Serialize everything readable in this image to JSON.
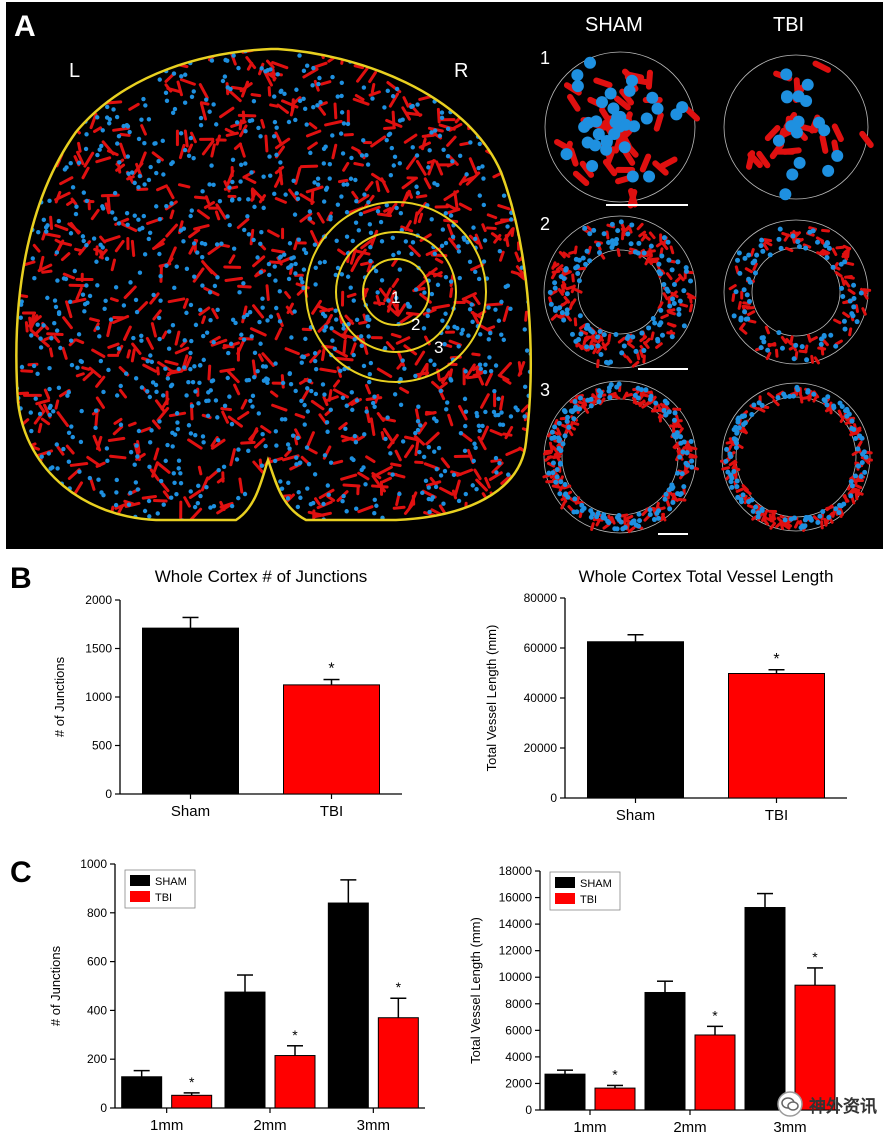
{
  "panel_a": {
    "letter": "A",
    "left_label": "L",
    "right_label": "R",
    "col_sham": "SHAM",
    "col_tbi": "TBI",
    "ring_labels": [
      "1",
      "2",
      "3"
    ],
    "row_labels": [
      "1",
      "2",
      "3"
    ],
    "colors": {
      "vessel": "#e01010",
      "junction": "#1e90e0",
      "outline": "#e8d020",
      "filopodia": "#40c030"
    }
  },
  "panel_b_letter": "B",
  "panel_c_letter": "C",
  "watermark": "神外资讯",
  "chart_data": [
    {
      "type": "bar",
      "title": "Whole Cortex # of Junctions",
      "ylabel": "# of Junctions",
      "categories": [
        "Sham",
        "TBI"
      ],
      "values": [
        1710,
        1125
      ],
      "errors": [
        110,
        55
      ],
      "significant": [
        false,
        true
      ],
      "bar_colors": [
        "#000000",
        "#ff0000"
      ],
      "ylim": [
        0,
        2000
      ],
      "yticks": [
        0,
        500,
        1000,
        1500,
        2000
      ]
    },
    {
      "type": "bar",
      "title": "Whole Cortex Total Vessel Length",
      "ylabel": "Total Vessel Length (mm)",
      "categories": [
        "Sham",
        "TBI"
      ],
      "values": [
        62500,
        49800
      ],
      "errors": [
        2800,
        1500
      ],
      "significant": [
        false,
        true
      ],
      "bar_colors": [
        "#000000",
        "#ff0000"
      ],
      "ylim": [
        0,
        80000
      ],
      "yticks": [
        0,
        20000,
        40000,
        60000,
        80000
      ]
    },
    {
      "type": "bar",
      "title": "",
      "ylabel": "# of Junctions",
      "categories": [
        "1mm",
        "2mm",
        "3mm"
      ],
      "series": [
        {
          "name": "SHAM",
          "color": "#000000",
          "values": [
            128,
            475,
            840
          ],
          "errors": [
            25,
            70,
            95
          ],
          "significant": [
            false,
            false,
            false
          ]
        },
        {
          "name": "TBI",
          "color": "#ff0000",
          "values": [
            52,
            215,
            370
          ],
          "errors": [
            10,
            40,
            80
          ],
          "significant": [
            true,
            true,
            true
          ]
        }
      ],
      "ylim": [
        0,
        1000
      ],
      "yticks": [
        0,
        200,
        400,
        600,
        800,
        1000
      ],
      "legend": "top-left"
    },
    {
      "type": "bar",
      "title": "",
      "ylabel": "Total Vessel Length (mm)",
      "categories": [
        "1mm",
        "2mm",
        "3mm"
      ],
      "series": [
        {
          "name": "SHAM",
          "color": "#000000",
          "values": [
            2700,
            8850,
            15250
          ],
          "errors": [
            300,
            850,
            1050
          ],
          "significant": [
            false,
            false,
            false
          ]
        },
        {
          "name": "TBI",
          "color": "#ff0000",
          "values": [
            1650,
            5650,
            9400
          ],
          "errors": [
            200,
            650,
            1300
          ],
          "significant": [
            true,
            true,
            true
          ]
        }
      ],
      "ylim": [
        0,
        18000
      ],
      "yticks": [
        0,
        2000,
        4000,
        6000,
        8000,
        10000,
        12000,
        14000,
        16000,
        18000
      ],
      "legend": "top-left"
    }
  ]
}
